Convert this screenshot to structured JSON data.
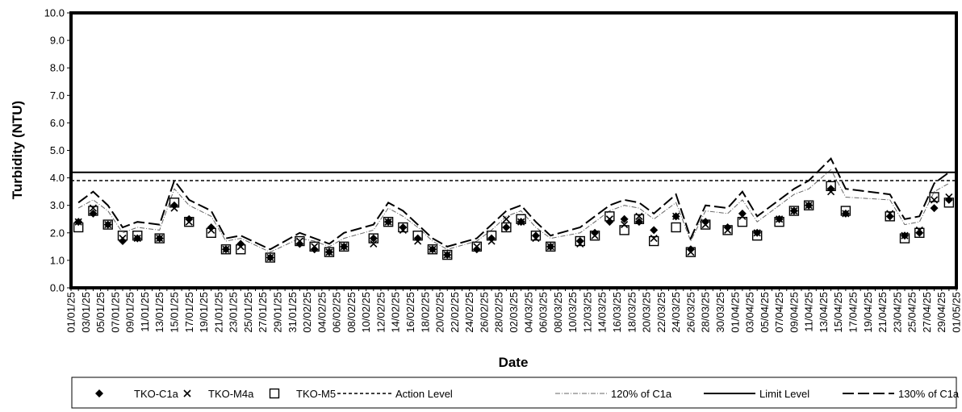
{
  "chart_data": {
    "type": "scatter",
    "xlabel": "Date",
    "ylabel": "Turbidity (NTU)",
    "ylim": [
      0,
      10
    ],
    "yticks": [
      "0.0",
      "1.0",
      "2.0",
      "3.0",
      "4.0",
      "5.0",
      "6.0",
      "7.0",
      "8.0",
      "9.0",
      "10.0"
    ],
    "xlim": [
      "2025-01-01",
      "2025-05-01"
    ],
    "xtick_labels": [
      "01/01/25",
      "03/01/25",
      "05/01/25",
      "07/01/25",
      "09/01/25",
      "11/01/25",
      "13/01/25",
      "15/01/25",
      "17/01/25",
      "19/01/25",
      "21/01/25",
      "23/01/25",
      "25/01/25",
      "27/01/25",
      "29/01/25",
      "31/01/25",
      "02/02/25",
      "04/02/25",
      "06/02/25",
      "08/02/25",
      "10/02/25",
      "12/02/25",
      "14/02/25",
      "16/02/25",
      "18/02/25",
      "20/02/25",
      "22/02/25",
      "24/02/25",
      "26/02/25",
      "28/02/25",
      "02/03/25",
      "04/03/25",
      "06/03/25",
      "08/03/25",
      "10/03/25",
      "12/03/25",
      "14/03/25",
      "16/03/25",
      "18/03/25",
      "20/03/25",
      "22/03/25",
      "24/03/25",
      "26/03/25",
      "28/03/25",
      "30/03/25",
      "01/04/25",
      "03/04/25",
      "05/04/25",
      "07/04/25",
      "09/04/25",
      "11/04/25",
      "13/04/25",
      "15/04/25",
      "17/04/25",
      "19/04/25",
      "21/04/25",
      "23/04/25",
      "25/04/25",
      "27/04/25",
      "29/04/25",
      "01/05/25"
    ],
    "legend_position": "bottom",
    "grid": false,
    "series": [
      {
        "name": "TKO-C1a",
        "marker": "diamond",
        "points": [
          [
            "2025-01-02",
            2.4
          ],
          [
            "2025-01-04",
            2.7
          ],
          [
            "2025-01-06",
            2.3
          ],
          [
            "2025-01-08",
            1.7
          ],
          [
            "2025-01-10",
            1.8
          ],
          [
            "2025-01-13",
            1.8
          ],
          [
            "2025-01-15",
            3.0
          ],
          [
            "2025-01-17",
            2.5
          ],
          [
            "2025-01-20",
            2.2
          ],
          [
            "2025-01-22",
            1.4
          ],
          [
            "2025-01-24",
            1.6
          ],
          [
            "2025-01-28",
            1.1
          ],
          [
            "2025-02-01",
            1.6
          ],
          [
            "2025-02-03",
            1.4
          ],
          [
            "2025-02-05",
            1.3
          ],
          [
            "2025-02-07",
            1.5
          ],
          [
            "2025-02-11",
            1.8
          ],
          [
            "2025-02-13",
            2.4
          ],
          [
            "2025-02-15",
            2.2
          ],
          [
            "2025-02-17",
            1.8
          ],
          [
            "2025-02-19",
            1.4
          ],
          [
            "2025-02-21",
            1.2
          ],
          [
            "2025-02-25",
            1.4
          ],
          [
            "2025-02-27",
            1.8
          ],
          [
            "2025-03-01",
            2.2
          ],
          [
            "2025-03-03",
            2.4
          ],
          [
            "2025-03-05",
            1.9
          ],
          [
            "2025-03-07",
            1.5
          ],
          [
            "2025-03-11",
            1.7
          ],
          [
            "2025-03-13",
            2.0
          ],
          [
            "2025-03-15",
            2.4
          ],
          [
            "2025-03-17",
            2.5
          ],
          [
            "2025-03-19",
            2.4
          ],
          [
            "2025-03-21",
            2.1
          ],
          [
            "2025-03-24",
            2.6
          ],
          [
            "2025-03-26",
            1.4
          ],
          [
            "2025-03-28",
            2.4
          ],
          [
            "2025-03-31",
            2.2
          ],
          [
            "2025-04-02",
            2.7
          ],
          [
            "2025-04-04",
            2.0
          ],
          [
            "2025-04-07",
            2.5
          ],
          [
            "2025-04-09",
            2.8
          ],
          [
            "2025-04-11",
            3.0
          ],
          [
            "2025-04-14",
            3.6
          ],
          [
            "2025-04-16",
            2.7
          ],
          [
            "2025-04-22",
            2.6
          ],
          [
            "2025-04-24",
            1.9
          ],
          [
            "2025-04-26",
            2.0
          ],
          [
            "2025-04-28",
            2.9
          ],
          [
            "2025-04-30",
            3.2
          ]
        ]
      },
      {
        "name": "TKO-M4a",
        "marker": "x",
        "points": [
          [
            "2025-01-02",
            2.4
          ],
          [
            "2025-01-04",
            2.9
          ],
          [
            "2025-01-06",
            2.3
          ],
          [
            "2025-01-08",
            1.8
          ],
          [
            "2025-01-10",
            1.8
          ],
          [
            "2025-01-13",
            1.8
          ],
          [
            "2025-01-15",
            2.9
          ],
          [
            "2025-01-17",
            2.4
          ],
          [
            "2025-01-20",
            2.1
          ],
          [
            "2025-01-22",
            1.4
          ],
          [
            "2025-01-24",
            1.5
          ],
          [
            "2025-01-28",
            1.1
          ],
          [
            "2025-02-01",
            1.7
          ],
          [
            "2025-02-03",
            1.5
          ],
          [
            "2025-02-05",
            1.3
          ],
          [
            "2025-02-07",
            1.5
          ],
          [
            "2025-02-11",
            1.6
          ],
          [
            "2025-02-13",
            2.4
          ],
          [
            "2025-02-15",
            2.1
          ],
          [
            "2025-02-17",
            1.7
          ],
          [
            "2025-02-19",
            1.4
          ],
          [
            "2025-02-21",
            1.2
          ],
          [
            "2025-02-25",
            1.5
          ],
          [
            "2025-02-27",
            1.7
          ],
          [
            "2025-03-01",
            2.5
          ],
          [
            "2025-03-03",
            2.4
          ],
          [
            "2025-03-05",
            1.8
          ],
          [
            "2025-03-07",
            1.5
          ],
          [
            "2025-03-11",
            1.6
          ],
          [
            "2025-03-13",
            1.9
          ],
          [
            "2025-03-15",
            2.5
          ],
          [
            "2025-03-17",
            2.3
          ],
          [
            "2025-03-19",
            2.6
          ],
          [
            "2025-03-21",
            1.8
          ],
          [
            "2025-03-24",
            2.6
          ],
          [
            "2025-03-26",
            1.3
          ],
          [
            "2025-03-28",
            2.3
          ],
          [
            "2025-03-31",
            2.1
          ],
          [
            "2025-04-02",
            2.6
          ],
          [
            "2025-04-04",
            2.0
          ],
          [
            "2025-04-07",
            2.5
          ],
          [
            "2025-04-09",
            2.8
          ],
          [
            "2025-04-11",
            3.0
          ],
          [
            "2025-04-14",
            3.5
          ],
          [
            "2025-04-16",
            2.7
          ],
          [
            "2025-04-22",
            2.7
          ],
          [
            "2025-04-24",
            1.9
          ],
          [
            "2025-04-26",
            2.1
          ],
          [
            "2025-04-28",
            3.2
          ],
          [
            "2025-04-30",
            3.3
          ]
        ]
      },
      {
        "name": "TKO-M5",
        "marker": "square",
        "points": [
          [
            "2025-01-02",
            2.2
          ],
          [
            "2025-01-04",
            2.8
          ],
          [
            "2025-01-06",
            2.3
          ],
          [
            "2025-01-08",
            1.9
          ],
          [
            "2025-01-10",
            1.9
          ],
          [
            "2025-01-13",
            1.8
          ],
          [
            "2025-01-15",
            3.1
          ],
          [
            "2025-01-17",
            2.4
          ],
          [
            "2025-01-20",
            2.0
          ],
          [
            "2025-01-22",
            1.4
          ],
          [
            "2025-01-24",
            1.4
          ],
          [
            "2025-01-28",
            1.1
          ],
          [
            "2025-02-01",
            1.7
          ],
          [
            "2025-02-03",
            1.5
          ],
          [
            "2025-02-05",
            1.3
          ],
          [
            "2025-02-07",
            1.5
          ],
          [
            "2025-02-11",
            1.8
          ],
          [
            "2025-02-13",
            2.4
          ],
          [
            "2025-02-15",
            2.2
          ],
          [
            "2025-02-17",
            1.9
          ],
          [
            "2025-02-19",
            1.4
          ],
          [
            "2025-02-21",
            1.2
          ],
          [
            "2025-02-25",
            1.5
          ],
          [
            "2025-02-27",
            1.9
          ],
          [
            "2025-03-01",
            2.2
          ],
          [
            "2025-03-03",
            2.5
          ],
          [
            "2025-03-05",
            1.9
          ],
          [
            "2025-03-07",
            1.5
          ],
          [
            "2025-03-11",
            1.7
          ],
          [
            "2025-03-13",
            1.9
          ],
          [
            "2025-03-15",
            2.6
          ],
          [
            "2025-03-17",
            2.1
          ],
          [
            "2025-03-19",
            2.5
          ],
          [
            "2025-03-21",
            1.7
          ],
          [
            "2025-03-24",
            2.2
          ],
          [
            "2025-03-26",
            1.3
          ],
          [
            "2025-03-28",
            2.3
          ],
          [
            "2025-03-31",
            2.1
          ],
          [
            "2025-04-02",
            2.4
          ],
          [
            "2025-04-04",
            1.9
          ],
          [
            "2025-04-07",
            2.4
          ],
          [
            "2025-04-09",
            2.8
          ],
          [
            "2025-04-11",
            3.0
          ],
          [
            "2025-04-14",
            3.7
          ],
          [
            "2025-04-16",
            2.8
          ],
          [
            "2025-04-22",
            2.6
          ],
          [
            "2025-04-24",
            1.8
          ],
          [
            "2025-04-26",
            2.0
          ],
          [
            "2025-04-28",
            3.3
          ],
          [
            "2025-04-30",
            3.1
          ]
        ]
      },
      {
        "name": "Action Level",
        "style": "short-dash",
        "constant": 3.9
      },
      {
        "name": "120% of C1a",
        "style": "dash-dot-thin",
        "points": [
          [
            "2025-01-02",
            2.9
          ],
          [
            "2025-01-04",
            3.2
          ],
          [
            "2025-01-06",
            2.8
          ],
          [
            "2025-01-08",
            2.0
          ],
          [
            "2025-01-10",
            2.2
          ],
          [
            "2025-01-13",
            2.1
          ],
          [
            "2025-01-15",
            3.6
          ],
          [
            "2025-01-17",
            3.0
          ],
          [
            "2025-01-20",
            2.6
          ],
          [
            "2025-01-22",
            1.7
          ],
          [
            "2025-01-24",
            1.8
          ],
          [
            "2025-01-28",
            1.3
          ],
          [
            "2025-02-01",
            1.8
          ],
          [
            "2025-02-03",
            1.7
          ],
          [
            "2025-02-05",
            1.5
          ],
          [
            "2025-02-07",
            1.8
          ],
          [
            "2025-02-11",
            2.1
          ],
          [
            "2025-02-13",
            2.9
          ],
          [
            "2025-02-15",
            2.6
          ],
          [
            "2025-02-17",
            2.2
          ],
          [
            "2025-02-19",
            1.7
          ],
          [
            "2025-02-21",
            1.4
          ],
          [
            "2025-02-25",
            1.7
          ],
          [
            "2025-02-27",
            2.1
          ],
          [
            "2025-03-01",
            2.6
          ],
          [
            "2025-03-03",
            2.8
          ],
          [
            "2025-03-05",
            2.2
          ],
          [
            "2025-03-07",
            1.8
          ],
          [
            "2025-03-11",
            2.0
          ],
          [
            "2025-03-13",
            2.4
          ],
          [
            "2025-03-15",
            2.8
          ],
          [
            "2025-03-17",
            3.0
          ],
          [
            "2025-03-19",
            2.9
          ],
          [
            "2025-03-21",
            2.5
          ],
          [
            "2025-03-24",
            3.1
          ],
          [
            "2025-03-26",
            1.7
          ],
          [
            "2025-03-28",
            2.8
          ],
          [
            "2025-03-31",
            2.7
          ],
          [
            "2025-04-02",
            3.2
          ],
          [
            "2025-04-04",
            2.4
          ],
          [
            "2025-04-07",
            3.0
          ],
          [
            "2025-04-09",
            3.4
          ],
          [
            "2025-04-11",
            3.6
          ],
          [
            "2025-04-14",
            4.3
          ],
          [
            "2025-04-16",
            3.3
          ],
          [
            "2025-04-22",
            3.2
          ],
          [
            "2025-04-24",
            2.3
          ],
          [
            "2025-04-26",
            2.4
          ],
          [
            "2025-04-28",
            3.5
          ],
          [
            "2025-04-30",
            3.8
          ]
        ]
      },
      {
        "name": "Limit Level",
        "style": "solid",
        "constant": 4.2
      },
      {
        "name": "130% of C1a",
        "style": "long-dash",
        "points": [
          [
            "2025-01-02",
            3.1
          ],
          [
            "2025-01-04",
            3.5
          ],
          [
            "2025-01-06",
            3.0
          ],
          [
            "2025-01-08",
            2.2
          ],
          [
            "2025-01-10",
            2.4
          ],
          [
            "2025-01-13",
            2.3
          ],
          [
            "2025-01-15",
            3.9
          ],
          [
            "2025-01-17",
            3.2
          ],
          [
            "2025-01-20",
            2.8
          ],
          [
            "2025-01-22",
            1.8
          ],
          [
            "2025-01-24",
            1.9
          ],
          [
            "2025-01-28",
            1.4
          ],
          [
            "2025-02-01",
            2.0
          ],
          [
            "2025-02-03",
            1.8
          ],
          [
            "2025-02-05",
            1.6
          ],
          [
            "2025-02-07",
            2.0
          ],
          [
            "2025-02-11",
            2.3
          ],
          [
            "2025-02-13",
            3.1
          ],
          [
            "2025-02-15",
            2.8
          ],
          [
            "2025-02-17",
            2.3
          ],
          [
            "2025-02-19",
            1.8
          ],
          [
            "2025-02-21",
            1.5
          ],
          [
            "2025-02-25",
            1.8
          ],
          [
            "2025-02-27",
            2.3
          ],
          [
            "2025-03-01",
            2.8
          ],
          [
            "2025-03-03",
            3.0
          ],
          [
            "2025-03-05",
            2.4
          ],
          [
            "2025-03-07",
            1.9
          ],
          [
            "2025-03-11",
            2.2
          ],
          [
            "2025-03-13",
            2.6
          ],
          [
            "2025-03-15",
            3.0
          ],
          [
            "2025-03-17",
            3.2
          ],
          [
            "2025-03-19",
            3.1
          ],
          [
            "2025-03-21",
            2.7
          ],
          [
            "2025-03-24",
            3.4
          ],
          [
            "2025-03-26",
            1.8
          ],
          [
            "2025-03-28",
            3.0
          ],
          [
            "2025-03-31",
            2.9
          ],
          [
            "2025-04-02",
            3.5
          ],
          [
            "2025-04-04",
            2.6
          ],
          [
            "2025-04-07",
            3.2
          ],
          [
            "2025-04-09",
            3.6
          ],
          [
            "2025-04-11",
            3.9
          ],
          [
            "2025-04-14",
            4.7
          ],
          [
            "2025-04-16",
            3.6
          ],
          [
            "2025-04-22",
            3.4
          ],
          [
            "2025-04-24",
            2.5
          ],
          [
            "2025-04-26",
            2.6
          ],
          [
            "2025-04-28",
            3.8
          ],
          [
            "2025-04-30",
            4.2
          ]
        ]
      }
    ]
  }
}
